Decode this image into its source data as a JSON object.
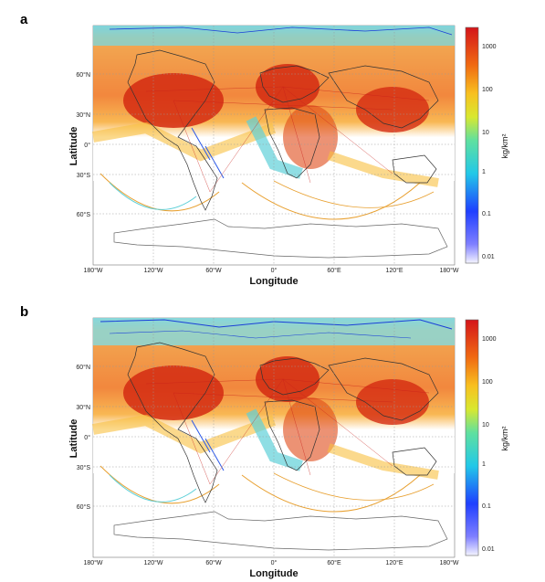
{
  "panels": [
    {
      "label": "a",
      "xlabel": "Longitude",
      "ylabel": "Latitude",
      "lon_ticks": [
        "180°W",
        "120°W",
        "60°W",
        "0°",
        "60°E",
        "120°E",
        "180°W"
      ],
      "lat_ticks": [
        "60°N",
        "30°N",
        "0°",
        "30°S",
        "60°S"
      ],
      "colorbar_label": "kg/km²",
      "colorbar_ticks": [
        "1000",
        "100",
        "10",
        "1",
        "0.1",
        "0.01"
      ]
    },
    {
      "label": "b",
      "xlabel": "Longitude",
      "ylabel": "Latitude",
      "lon_ticks": [
        "180°W",
        "120°W",
        "60°W",
        "0°",
        "60°E",
        "120°E",
        "180°W"
      ],
      "lat_ticks": [
        "60°N",
        "30°N",
        "0°",
        "30°S",
        "60°S"
      ],
      "colorbar_label": "kg/km²",
      "colorbar_ticks": [
        "1000",
        "100",
        "10",
        "1",
        "0.1",
        "0.01"
      ]
    }
  ],
  "colors": {
    "high": "#d42a12",
    "mid": "#f0901a",
    "low": "#9ad8d0",
    "coast": "#333333"
  }
}
